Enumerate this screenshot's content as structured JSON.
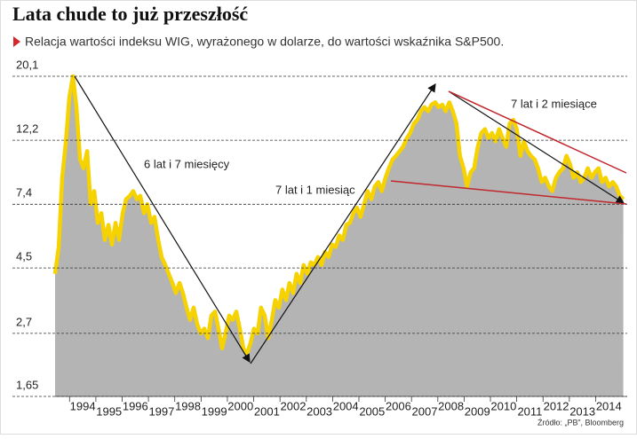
{
  "chart_data": {
    "type": "area",
    "title": "Lata chude to już przeszłość",
    "subtitle": "Relacja wartości indeksu WIG, wyrażonego w dolarze, do wartości wskaźnika S&P500.",
    "source": "Źródło: „PB”, Bloomberg",
    "annotations": [
      "6 lat i 7 miesięcy",
      "7 lat i 1 miesiąc",
      "7 lat i 2 miesiące"
    ],
    "log_scale": true,
    "grid": true,
    "color": "#f5d200",
    "fill_color": "#b4b4b4",
    "ylim": [
      1.65,
      20.1
    ],
    "yticks": [
      {
        "value": 1.65,
        "label": "1,65"
      },
      {
        "value": 2.7,
        "label": "2,7"
      },
      {
        "value": 4.5,
        "label": "4,5"
      },
      {
        "value": 7.4,
        "label": "7,4"
      },
      {
        "value": 12.2,
        "label": "12,2"
      },
      {
        "value": 20.1,
        "label": "20,1"
      }
    ],
    "xlim": [
      1993.45,
      2015.2
    ],
    "xticks": [
      1994,
      1995,
      1996,
      1997,
      1998,
      1999,
      2000,
      2001,
      2002,
      2003,
      2004,
      2005,
      2006,
      2007,
      2008,
      2009,
      2010,
      2011,
      2012,
      2013,
      2014
    ],
    "x": [
      1993.45,
      1993.59,
      1993.72,
      1993.86,
      1993.99,
      1994.13,
      1994.26,
      1994.4,
      1994.53,
      1994.67,
      1994.8,
      1994.94,
      1995.07,
      1995.21,
      1995.34,
      1995.48,
      1995.61,
      1995.75,
      1995.88,
      1996.02,
      1996.15,
      1996.29,
      1996.42,
      1996.56,
      1996.69,
      1996.83,
      1996.96,
      1997.1,
      1997.23,
      1997.37,
      1997.5,
      1997.64,
      1997.77,
      1997.91,
      1998.04,
      1998.18,
      1998.31,
      1998.45,
      1998.58,
      1998.72,
      1998.85,
      1998.99,
      1999.12,
      1999.26,
      1999.39,
      1999.53,
      1999.66,
      1999.8,
      1999.93,
      2000.07,
      2000.2,
      2000.34,
      2000.47,
      2000.61,
      2000.74,
      2000.88,
      2001.01,
      2001.15,
      2001.28,
      2001.42,
      2001.55,
      2001.69,
      2001.82,
      2001.96,
      2002.09,
      2002.23,
      2002.36,
      2002.5,
      2002.63,
      2002.77,
      2002.9,
      2003.04,
      2003.17,
      2003.31,
      2003.44,
      2003.58,
      2003.71,
      2003.85,
      2003.98,
      2004.12,
      2004.25,
      2004.39,
      2004.52,
      2004.66,
      2004.79,
      2004.93,
      2005.06,
      2005.2,
      2005.33,
      2005.47,
      2005.6,
      2005.74,
      2005.87,
      2006.01,
      2006.14,
      2006.28,
      2006.41,
      2006.55,
      2006.68,
      2006.82,
      2006.95,
      2007.09,
      2007.22,
      2007.36,
      2007.49,
      2007.63,
      2007.76,
      2007.9,
      2008.03,
      2008.17,
      2008.3,
      2008.44,
      2008.57,
      2008.71,
      2008.84,
      2008.98,
      2009.11,
      2009.25,
      2009.38,
      2009.52,
      2009.65,
      2009.79,
      2009.92,
      2010.06,
      2010.19,
      2010.33,
      2010.46,
      2010.6,
      2010.73,
      2010.87,
      2011.0,
      2011.14,
      2011.27,
      2011.41,
      2011.54,
      2011.68,
      2011.81,
      2011.95,
      2012.08,
      2012.22,
      2012.35,
      2012.49,
      2012.62,
      2012.76,
      2012.89,
      2013.03,
      2013.16,
      2013.3,
      2013.43,
      2013.57,
      2013.7,
      2013.84,
      2013.97,
      2014.11,
      2014.24,
      2014.38,
      2014.51,
      2014.65,
      2014.78,
      2014.92,
      2015.05
    ],
    "values": [
      4.3,
      5.3,
      9.1,
      12,
      17,
      20.1,
      15.8,
      10.5,
      9.8,
      11.2,
      7.4,
      8.2,
      6.4,
      6.9,
      5.6,
      6.3,
      5.4,
      6.4,
      5.6,
      6.9,
      7.7,
      7.9,
      8.2,
      7.7,
      7.9,
      6.9,
      7.4,
      6.4,
      6.7,
      5.6,
      4.9,
      4.6,
      4.3,
      4.0,
      3.7,
      4.0,
      3.7,
      3.3,
      3.0,
      3.3,
      2.9,
      2.7,
      2.8,
      2.6,
      3.1,
      3.2,
      2.8,
      2.4,
      2.7,
      3.1,
      3.0,
      3.2,
      2.8,
      2.4,
      2.3,
      2.5,
      2.8,
      2.7,
      3.3,
      3.1,
      2.6,
      3.0,
      3.5,
      3.3,
      3.8,
      3.5,
      4.0,
      3.7,
      4.3,
      4.0,
      4.6,
      4.3,
      4.7,
      4.6,
      4.9,
      4.6,
      5.1,
      4.9,
      5.4,
      5.3,
      5.8,
      5.6,
      6.3,
      6.4,
      6.9,
      7.2,
      6.7,
      7.4,
      8.2,
      7.7,
      8.5,
      8.8,
      8.2,
      9.1,
      9.8,
      10.5,
      10.8,
      11.2,
      11.6,
      12.4,
      12.9,
      13.9,
      14.3,
      15.3,
      15.8,
      15.3,
      16.1,
      16.4,
      15.8,
      16.1,
      15.3,
      16.4,
      15.3,
      13.9,
      10.8,
      9.8,
      8.5,
      9.5,
      9.8,
      11.6,
      12.9,
      13.3,
      12.4,
      12.9,
      12.1,
      13.3,
      12.4,
      11.6,
      13.9,
      14.3,
      13.3,
      10.8,
      12.1,
      11.2,
      10.8,
      10.5,
      9.8,
      8.8,
      9.1,
      8.5,
      8.2,
      9.1,
      9.5,
      9.8,
      10.8,
      10.1,
      9.1,
      9.5,
      8.8,
      9.1,
      9.8,
      9.1,
      9.5,
      9.8,
      8.8,
      9.1,
      8.5,
      8.8,
      8.5,
      7.9,
      7.7
    ]
  }
}
